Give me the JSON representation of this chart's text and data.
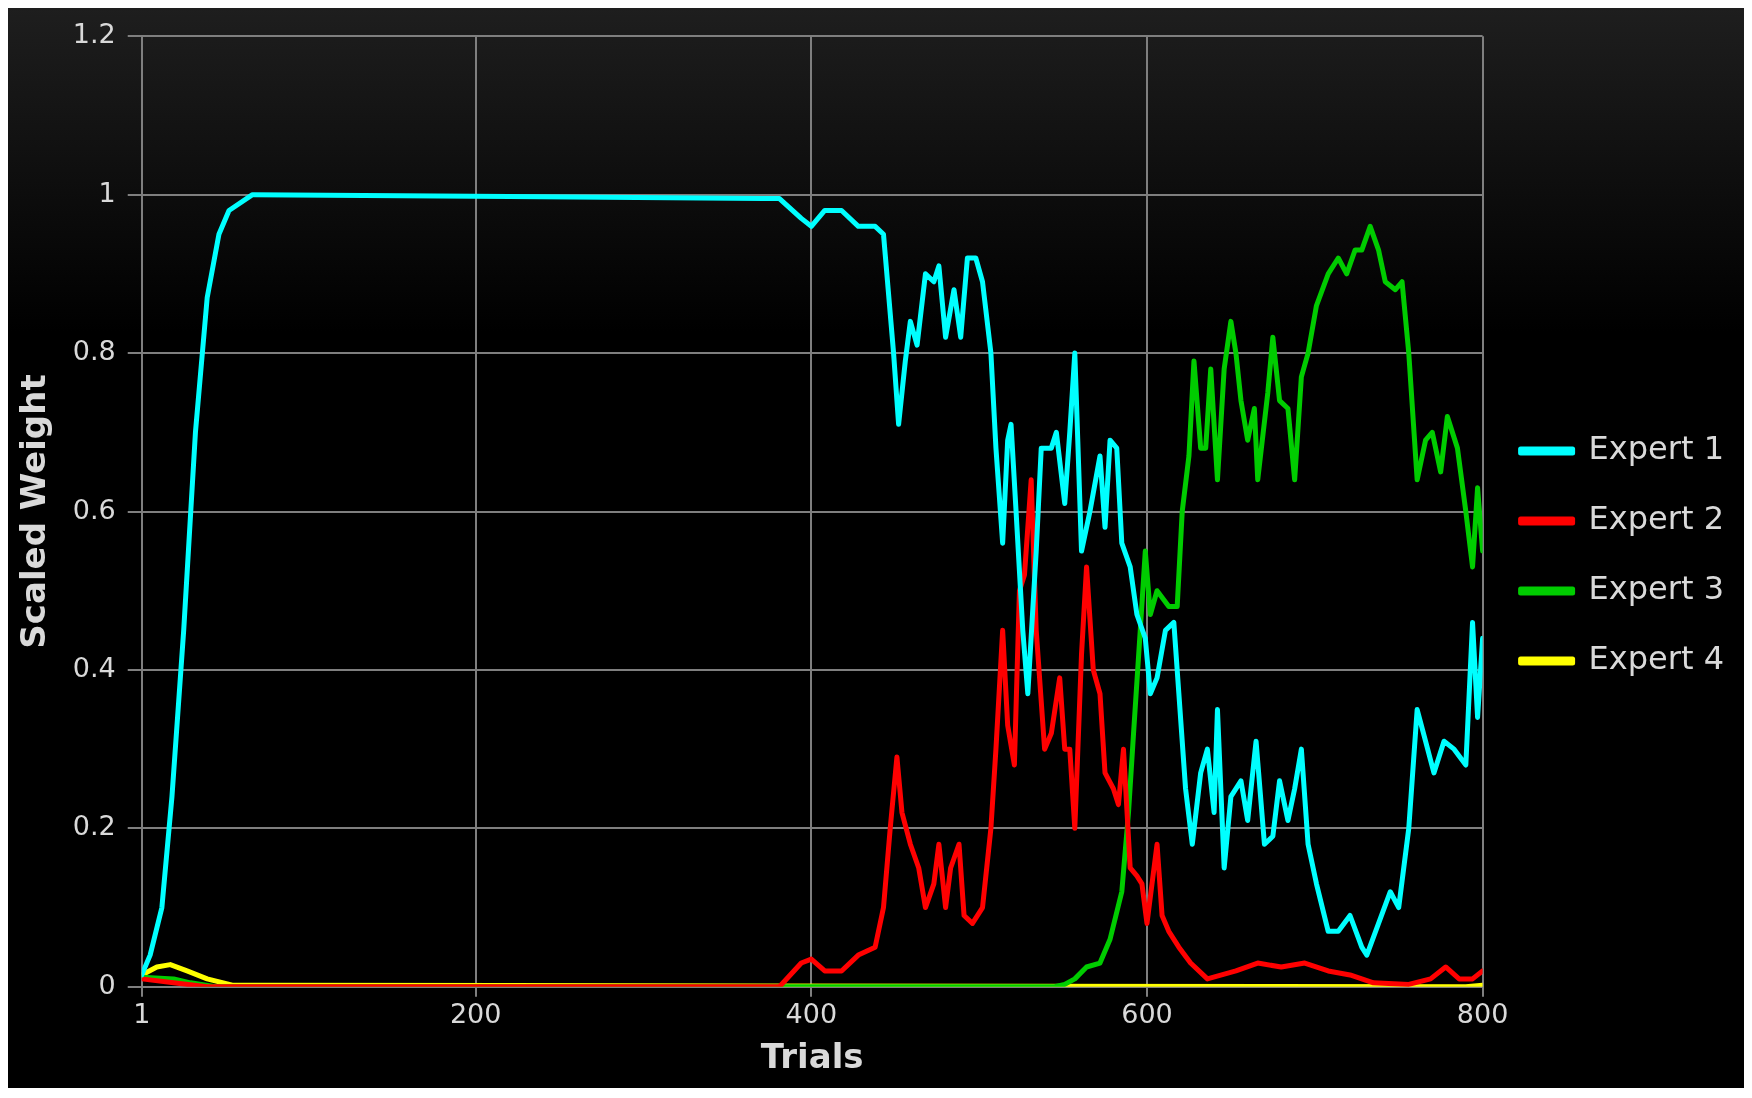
{
  "chart_data": {
    "type": "line",
    "xlabel": "Trials",
    "ylabel": "Scaled Weight",
    "xlim": [
      1,
      800
    ],
    "xticks": [
      1,
      200,
      400,
      600,
      800
    ],
    "ylim": [
      0,
      1.2
    ],
    "yticks": [
      0,
      0.2,
      0.4,
      0.6,
      0.8,
      1,
      1.2
    ],
    "grid": true,
    "legend": "right",
    "marker": "none",
    "line_style": "solid",
    "series": [
      {
        "name": "Expert 1",
        "color": "#00ffff",
        "x": [
          1,
          6,
          13,
          19,
          26,
          33,
          40,
          47,
          53,
          67,
          381,
          394,
          400,
          408,
          418,
          428,
          438,
          443,
          449,
          452,
          456,
          459,
          463,
          468,
          473,
          476,
          480,
          485,
          489,
          493,
          498,
          502,
          507,
          510,
          514,
          517,
          519,
          522,
          526,
          529,
          534,
          537,
          543,
          546,
          551,
          554,
          557,
          561,
          566,
          572,
          575,
          578,
          582,
          585,
          590,
          594,
          599,
          602,
          606,
          611,
          616,
          619,
          623,
          627,
          632,
          636,
          640,
          642,
          646,
          650,
          656,
          660,
          665,
          670,
          675,
          679,
          684,
          688,
          692,
          696,
          701,
          708,
          714,
          721,
          728,
          731,
          738,
          745,
          750,
          756,
          761,
          766,
          771,
          777,
          783,
          790,
          794,
          797,
          800
        ],
        "values": [
          0.015,
          0.04,
          0.1,
          0.24,
          0.45,
          0.7,
          0.87,
          0.95,
          0.98,
          1.0,
          0.995,
          0.97,
          0.96,
          0.98,
          0.98,
          0.96,
          0.96,
          0.95,
          0.8,
          0.71,
          0.79,
          0.84,
          0.81,
          0.9,
          0.89,
          0.91,
          0.82,
          0.88,
          0.82,
          0.92,
          0.92,
          0.89,
          0.8,
          0.68,
          0.56,
          0.69,
          0.71,
          0.6,
          0.45,
          0.37,
          0.55,
          0.68,
          0.68,
          0.7,
          0.61,
          0.7,
          0.8,
          0.55,
          0.6,
          0.67,
          0.58,
          0.69,
          0.68,
          0.56,
          0.53,
          0.47,
          0.44,
          0.37,
          0.39,
          0.45,
          0.46,
          0.37,
          0.25,
          0.18,
          0.27,
          0.3,
          0.22,
          0.35,
          0.15,
          0.24,
          0.26,
          0.21,
          0.31,
          0.18,
          0.19,
          0.26,
          0.21,
          0.25,
          0.3,
          0.18,
          0.13,
          0.07,
          0.07,
          0.09,
          0.05,
          0.04,
          0.08,
          0.12,
          0.1,
          0.2,
          0.35,
          0.31,
          0.27,
          0.31,
          0.3,
          0.28,
          0.46,
          0.34,
          0.44
        ]
      },
      {
        "name": "Expert 2",
        "color": "#ff0000",
        "x": [
          1,
          20,
          40,
          381,
          394,
          400,
          408,
          418,
          428,
          438,
          443,
          447,
          451,
          454,
          459,
          464,
          468,
          473,
          476,
          480,
          483,
          488,
          491,
          496,
          502,
          507,
          510,
          514,
          517,
          521,
          524,
          527,
          531,
          534,
          539,
          543,
          548,
          551,
          554,
          557,
          561,
          564,
          568,
          572,
          575,
          580,
          583,
          586,
          590,
          594,
          597,
          600,
          606,
          609,
          613,
          619,
          626,
          636,
          653,
          666,
          680,
          694,
          708,
          721,
          735,
          756,
          769,
          778,
          786,
          794,
          800
        ],
        "values": [
          0.01,
          0.005,
          0,
          0,
          0.03,
          0.035,
          0.02,
          0.02,
          0.04,
          0.05,
          0.1,
          0.2,
          0.29,
          0.22,
          0.18,
          0.15,
          0.1,
          0.13,
          0.18,
          0.1,
          0.15,
          0.18,
          0.09,
          0.08,
          0.1,
          0.2,
          0.3,
          0.45,
          0.33,
          0.28,
          0.5,
          0.52,
          0.64,
          0.45,
          0.3,
          0.32,
          0.39,
          0.3,
          0.3,
          0.2,
          0.42,
          0.53,
          0.4,
          0.37,
          0.27,
          0.25,
          0.23,
          0.3,
          0.15,
          0.14,
          0.13,
          0.08,
          0.18,
          0.09,
          0.07,
          0.05,
          0.03,
          0.01,
          0.02,
          0.03,
          0.025,
          0.03,
          0.02,
          0.015,
          0.005,
          0.003,
          0.01,
          0.025,
          0.01,
          0.01,
          0.02
        ]
      },
      {
        "name": "Expert 3",
        "color": "#00cc00",
        "x": [
          1,
          20,
          30,
          45,
          545,
          551,
          557,
          564,
          572,
          578,
          585,
          589,
          592,
          596,
          599,
          602,
          606,
          613,
          618,
          621,
          625,
          628,
          632,
          635,
          638,
          642,
          646,
          650,
          653,
          656,
          660,
          664,
          666,
          672,
          675,
          679,
          684,
          688,
          692,
          696,
          701,
          708,
          714,
          719,
          724,
          728,
          733,
          738,
          742,
          748,
          752,
          756,
          761,
          766,
          770,
          775,
          779,
          785,
          790,
          794,
          797,
          800
        ],
        "values": [
          0.012,
          0.01,
          0.005,
          0,
          0,
          0.003,
          0.01,
          0.025,
          0.03,
          0.06,
          0.12,
          0.22,
          0.32,
          0.45,
          0.55,
          0.47,
          0.5,
          0.48,
          0.48,
          0.6,
          0.67,
          0.79,
          0.68,
          0.68,
          0.78,
          0.64,
          0.78,
          0.84,
          0.8,
          0.74,
          0.69,
          0.73,
          0.64,
          0.75,
          0.82,
          0.74,
          0.73,
          0.64,
          0.77,
          0.8,
          0.86,
          0.9,
          0.92,
          0.9,
          0.93,
          0.93,
          0.96,
          0.93,
          0.89,
          0.88,
          0.89,
          0.8,
          0.64,
          0.69,
          0.7,
          0.65,
          0.72,
          0.68,
          0.6,
          0.53,
          0.63,
          0.55
        ]
      },
      {
        "name": "Expert 4",
        "color": "#ffff00",
        "x": [
          1,
          10,
          18,
          28,
          40,
          55,
          790,
          800
        ],
        "values": [
          0.015,
          0.025,
          0.028,
          0.02,
          0.01,
          0.002,
          0,
          0.002
        ]
      }
    ]
  }
}
